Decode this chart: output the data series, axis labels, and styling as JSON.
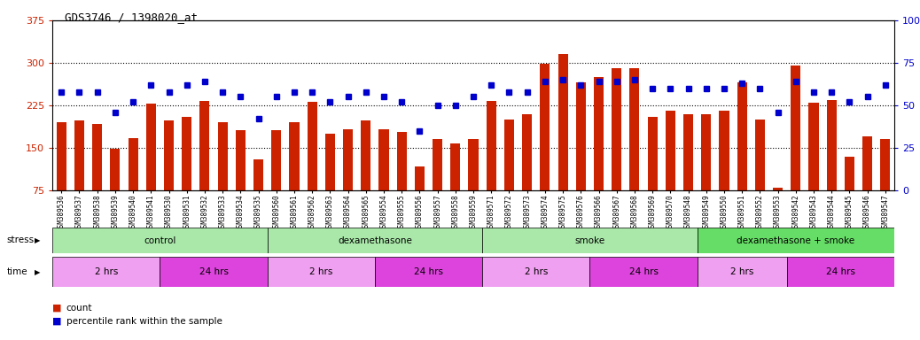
{
  "title": "GDS3746 / 1398020_at",
  "samples": [
    "GSM389536",
    "GSM389537",
    "GSM389538",
    "GSM389539",
    "GSM389540",
    "GSM389541",
    "GSM389530",
    "GSM389531",
    "GSM389532",
    "GSM389533",
    "GSM389534",
    "GSM389535",
    "GSM389560",
    "GSM389561",
    "GSM389562",
    "GSM389563",
    "GSM389564",
    "GSM389565",
    "GSM389554",
    "GSM389555",
    "GSM389556",
    "GSM389557",
    "GSM389558",
    "GSM389559",
    "GSM389571",
    "GSM389572",
    "GSM389573",
    "GSM389574",
    "GSM389575",
    "GSM389576",
    "GSM389566",
    "GSM389567",
    "GSM389568",
    "GSM389569",
    "GSM389570",
    "GSM389548",
    "GSM389549",
    "GSM389550",
    "GSM389551",
    "GSM389552",
    "GSM389553",
    "GSM389542",
    "GSM389543",
    "GSM389544",
    "GSM389545",
    "GSM389546",
    "GSM389547"
  ],
  "counts": [
    195,
    198,
    192,
    148,
    168,
    228,
    198,
    205,
    233,
    195,
    182,
    130,
    182,
    195,
    232,
    175,
    183,
    198,
    183,
    178,
    118,
    165,
    158,
    165,
    233,
    200,
    210,
    298,
    315,
    265,
    275,
    290,
    290,
    205,
    215,
    210,
    210,
    215,
    265,
    200,
    80,
    295,
    230,
    235,
    135,
    170,
    165
  ],
  "percentiles": [
    58,
    58,
    58,
    46,
    52,
    62,
    58,
    62,
    64,
    58,
    55,
    42,
    55,
    58,
    58,
    52,
    55,
    58,
    55,
    52,
    35,
    50,
    50,
    55,
    62,
    58,
    58,
    64,
    65,
    62,
    64,
    64,
    65,
    60,
    60,
    60,
    60,
    60,
    63,
    60,
    46,
    64,
    58,
    58,
    52,
    55,
    62
  ],
  "ylim_left": [
    75,
    375
  ],
  "ylim_right": [
    0,
    100
  ],
  "yticks_left": [
    75,
    150,
    225,
    300,
    375
  ],
  "yticks_right": [
    0,
    25,
    50,
    75,
    100
  ],
  "bar_color": "#cc2200",
  "dot_color": "#0000cc",
  "stress_groups": [
    {
      "label": "control",
      "start": 0,
      "end": 12,
      "color": "#aae8aa"
    },
    {
      "label": "dexamethasone",
      "start": 12,
      "end": 24,
      "color": "#aae8aa"
    },
    {
      "label": "smoke",
      "start": 24,
      "end": 36,
      "color": "#aae8aa"
    },
    {
      "label": "dexamethasone + smoke",
      "start": 36,
      "end": 47,
      "color": "#66dd66"
    }
  ],
  "time_groups": [
    {
      "label": "2 hrs",
      "start": 0,
      "end": 6,
      "color": "#f0a0f0"
    },
    {
      "label": "24 hrs",
      "start": 6,
      "end": 12,
      "color": "#dd44dd"
    },
    {
      "label": "2 hrs",
      "start": 12,
      "end": 18,
      "color": "#f0a0f0"
    },
    {
      "label": "24 hrs",
      "start": 18,
      "end": 24,
      "color": "#dd44dd"
    },
    {
      "label": "2 hrs",
      "start": 24,
      "end": 30,
      "color": "#f0a0f0"
    },
    {
      "label": "24 hrs",
      "start": 30,
      "end": 36,
      "color": "#dd44dd"
    },
    {
      "label": "2 hrs",
      "start": 36,
      "end": 41,
      "color": "#f0a0f0"
    },
    {
      "label": "24 hrs",
      "start": 41,
      "end": 47,
      "color": "#dd44dd"
    }
  ]
}
